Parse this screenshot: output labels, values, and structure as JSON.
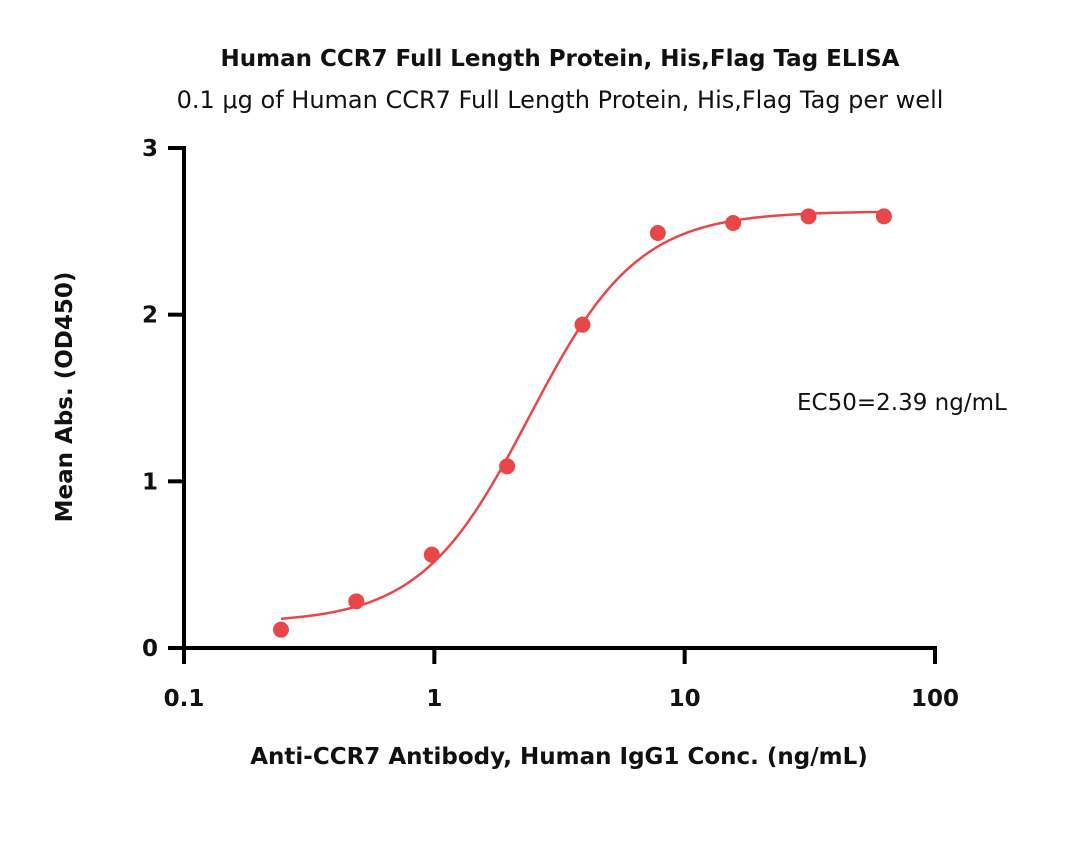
{
  "chart_data": {
    "type": "scatter",
    "title": "Human CCR7 Full Length Protein, His,Flag Tag ELISA",
    "subtitle": "0.1 μg of Human CCR7 Full Length Protein, His,Flag Tag per well",
    "xlabel": "Anti-CCR7 Antibody, Human IgG1 Conc. (ng/mL)",
    "ylabel": "Mean Abs. (OD450)",
    "xscale": "log",
    "xlim": [
      0.1,
      100
    ],
    "ylim": [
      0,
      3
    ],
    "x_ticks": [
      0.1,
      1,
      10,
      100
    ],
    "x_tick_labels": [
      "0.1",
      "1",
      "10",
      "100"
    ],
    "y_ticks": [
      0,
      1,
      2,
      3
    ],
    "y_tick_labels": [
      "0",
      "1",
      "2",
      "3"
    ],
    "grid": false,
    "legend": "none",
    "color": "#e8474a",
    "series": [
      {
        "x": [
          0.244,
          0.488,
          0.977,
          1.953,
          3.906,
          7.813,
          15.625,
          31.25,
          62.5
        ],
        "y": [
          0.11,
          0.28,
          0.56,
          1.09,
          1.94,
          2.49,
          2.55,
          2.59,
          2.59
        ]
      }
    ],
    "fit": {
      "bottom": 0.15,
      "top": 2.62,
      "ec50": 2.39,
      "hill": 2.0
    },
    "annotation": "EC50=2.39 ng/mL"
  }
}
